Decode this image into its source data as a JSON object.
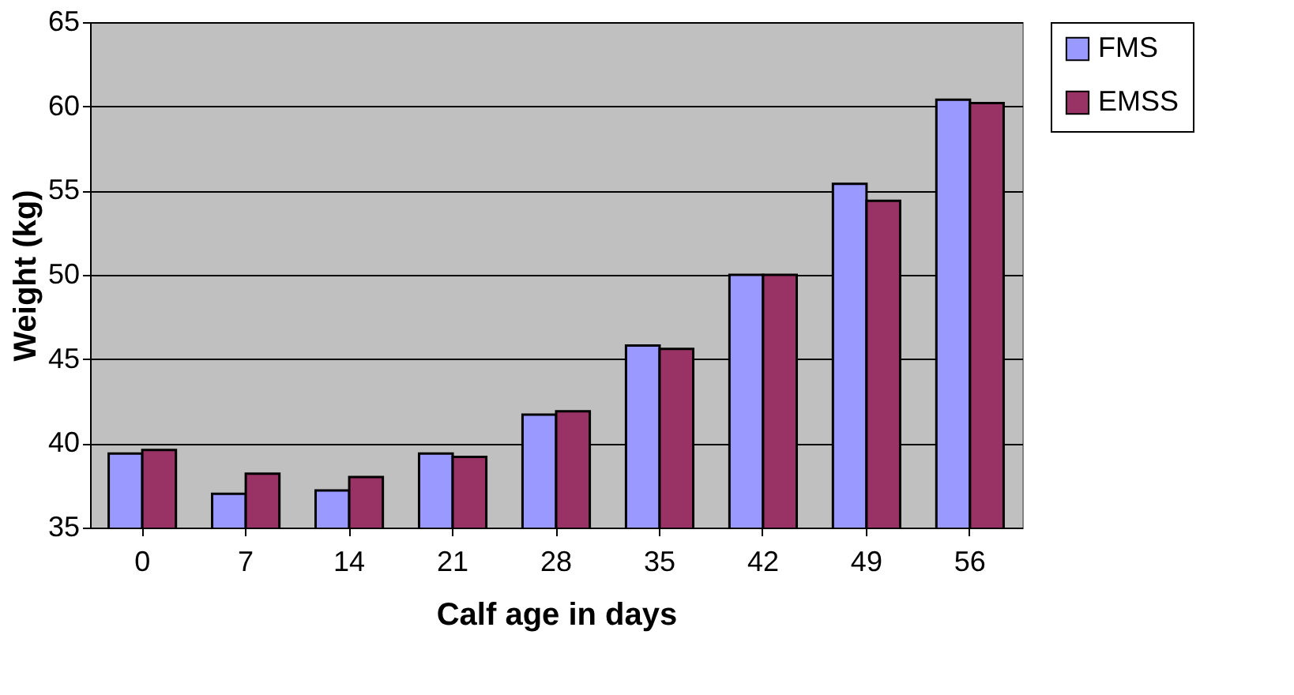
{
  "chart_data": {
    "type": "bar",
    "xlabel": "Calf age in days",
    "ylabel": "Weight (kg)",
    "categories": [
      "0",
      "7",
      "14",
      "21",
      "28",
      "35",
      "42",
      "49",
      "56"
    ],
    "series": [
      {
        "name": "FMS",
        "color": "#9999ff",
        "values": [
          39.4,
          37.0,
          37.2,
          39.4,
          41.7,
          45.8,
          50.0,
          55.4,
          60.4
        ]
      },
      {
        "name": "EMSS",
        "color": "#993366",
        "values": [
          39.6,
          38.2,
          38.0,
          39.2,
          41.9,
          45.6,
          50.0,
          54.4,
          60.2
        ]
      }
    ],
    "ylim": [
      35,
      65
    ],
    "yticks": [
      35,
      40,
      45,
      50,
      55,
      60,
      65
    ],
    "grid": "y",
    "legend": "right"
  }
}
